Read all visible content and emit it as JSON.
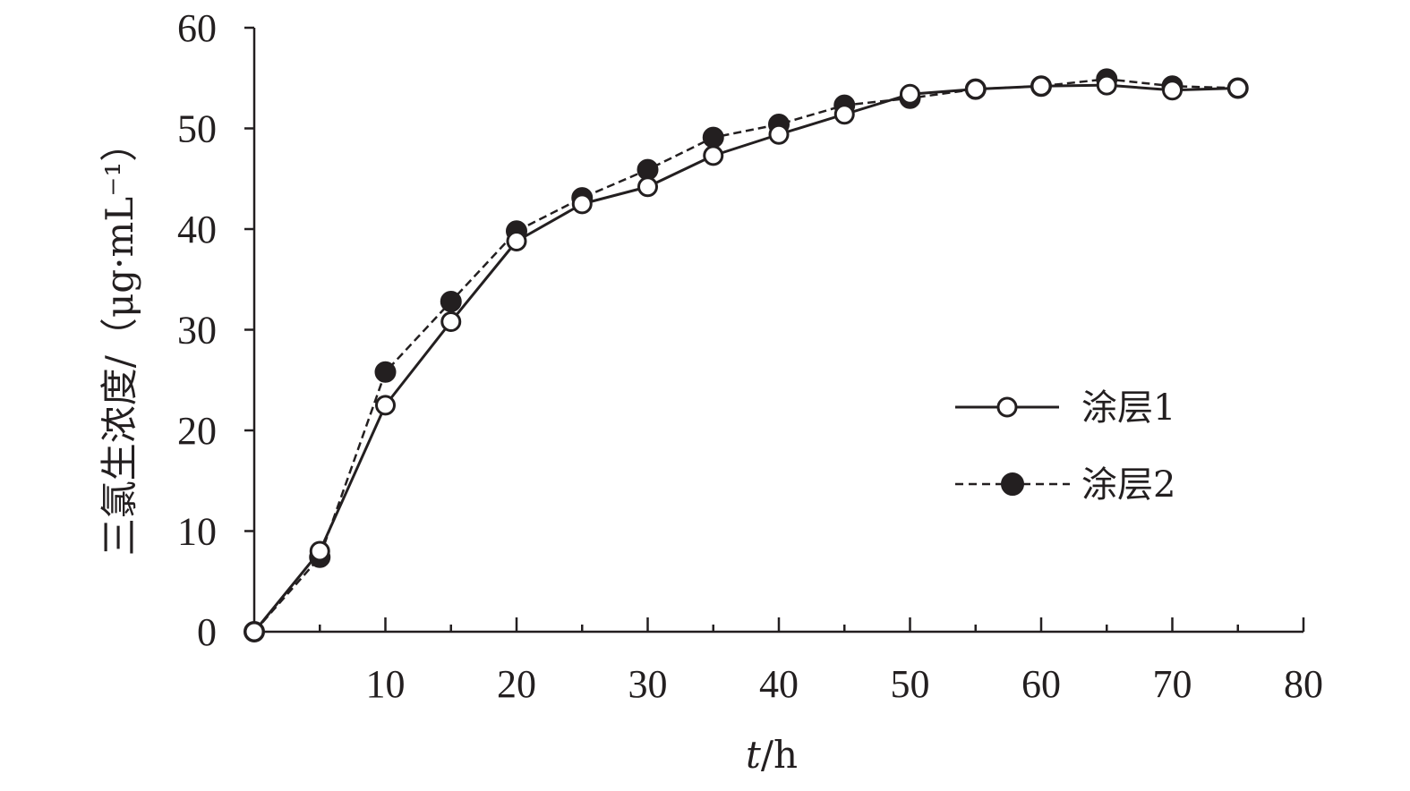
{
  "chart_data": {
    "type": "line",
    "xlabel_italic": "t",
    "xlabel_unit": "/h",
    "ylabel": "三氯生浓度/（μg·mL⁻¹）",
    "xlim": [
      0,
      80
    ],
    "ylim": [
      0,
      60
    ],
    "xticks": [
      10,
      20,
      30,
      40,
      50,
      60,
      70,
      80
    ],
    "yticks": [
      0,
      10,
      20,
      30,
      40,
      50,
      60
    ],
    "grid": false,
    "legend_position": "right-middle",
    "x": [
      0,
      5,
      10,
      15,
      20,
      25,
      30,
      35,
      40,
      45,
      50,
      55,
      60,
      65,
      70,
      75
    ],
    "series": [
      {
        "name": "涂层1",
        "line_style": "solid",
        "marker": "open-circle",
        "values": [
          0,
          8.0,
          22.5,
          30.8,
          38.8,
          42.5,
          44.2,
          47.3,
          49.4,
          51.4,
          53.4,
          53.9,
          54.2,
          54.3,
          53.8,
          54.0
        ]
      },
      {
        "name": "涂层2",
        "line_style": "dashed",
        "marker": "filled-circle",
        "values": [
          0,
          7.4,
          25.8,
          32.8,
          39.8,
          43.1,
          45.9,
          49.1,
          50.4,
          52.3,
          53.0,
          53.9,
          54.2,
          54.9,
          54.2,
          54.0
        ]
      }
    ],
    "colors": {
      "axis": "#231f20",
      "series": "#231f20",
      "background": "#ffffff"
    }
  }
}
